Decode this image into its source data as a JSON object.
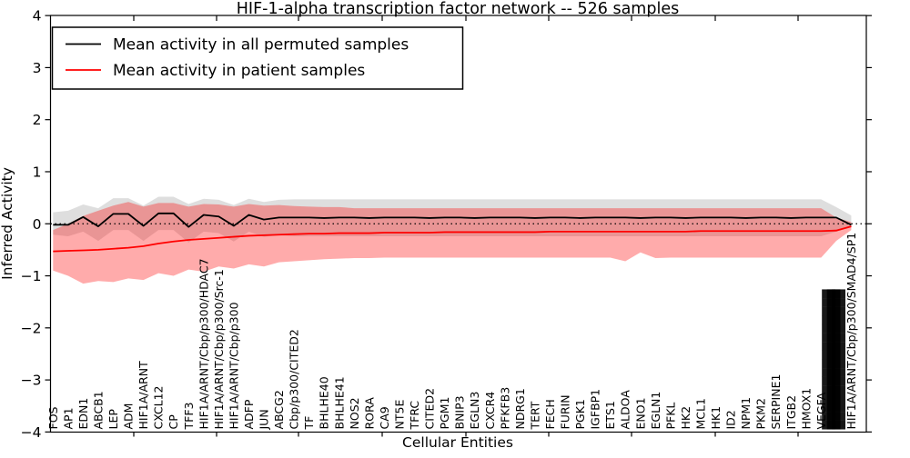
{
  "title": "HIF-1-alpha transcription factor network -- 526 samples",
  "axes": {
    "xlabel": "Cellular Entities",
    "ylabel": "Inferred Activity",
    "ytick_values": [
      4,
      3,
      2,
      1,
      0,
      -1,
      -2,
      -3,
      -4
    ],
    "ytick_labels": [
      "4",
      "3",
      "2",
      "1",
      "0",
      "−1",
      "−2",
      "−3",
      "−4"
    ],
    "ylim": [
      -4,
      4
    ]
  },
  "legend": {
    "entries": [
      {
        "label": "Mean activity in all permuted samples",
        "color": "#000000"
      },
      {
        "label": "Mean activity in patient samples",
        "color": "#ff0000"
      }
    ]
  },
  "colors": {
    "permuted_line": "#000000",
    "patient_line": "#ff0000",
    "permuted_band": "rgba(0,0,0,0.13)",
    "patient_band": "rgba(255,0,0,0.33)",
    "zero_line": "#000000",
    "background": "#ffffff"
  },
  "end_cluster": {
    "overlap_glyphs": "████████████████",
    "legible_label": "HIF1A/ARNT/Cbp/p300/SMAD4/SP1"
  },
  "chart_data": {
    "type": "line",
    "title": "HIF-1-alpha transcription factor network -- 526 samples",
    "xlabel": "Cellular Entities",
    "ylabel": "Inferred Activity",
    "ylim": [
      -4,
      4
    ],
    "grid": false,
    "zero_reference_line": 0,
    "legend_position": "upper left",
    "categories": [
      "FOS",
      "AP1",
      "EDN1",
      "ABCB1",
      "LEP",
      "ADM",
      "HIF1A/ARNT",
      "CXCL12",
      "CP",
      "TFF3",
      "HIF1A/ARNT/Cbp/p300/HDAC7",
      "HIF1A/ARNT/Cbp/p300/Src-1",
      "HIF1A/ARNT/Cbp/p300",
      "ADFP",
      "JUN",
      "ABCG2",
      "Cbp/p300/CITED2",
      "TF",
      "BHLHE40",
      "BHLHE41",
      "NOS2",
      "RORA",
      "CA9",
      "NT5E",
      "TFRC",
      "CITED2",
      "PGM1",
      "BNIP3",
      "EGLN3",
      "CXCR4",
      "PFKFB3",
      "NDRG1",
      "TERT",
      "FECH",
      "FURIN",
      "PGK1",
      "IGFBP1",
      "ETS1",
      "ALDOA",
      "ENO1",
      "EGLN1",
      "PFKL",
      "HK2",
      "MCL1",
      "HK1",
      "ID2",
      "NPM1",
      "PKM2",
      "SERPINE1",
      "ITGB2",
      "HMOX1",
      "VEGFA",
      "(illegible overlapping labels)",
      "HIF1A/ARNT/Cbp/p300/SMAD4/SP1"
    ],
    "series": [
      {
        "name": "Mean activity in all permuted samples",
        "color": "#000000",
        "values": [
          -0.02,
          -0.02,
          0.13,
          -0.05,
          0.19,
          0.19,
          -0.04,
          0.2,
          0.2,
          -0.06,
          0.17,
          0.14,
          -0.04,
          0.17,
          0.08,
          0.12,
          0.12,
          0.12,
          0.11,
          0.12,
          0.12,
          0.11,
          0.12,
          0.12,
          0.12,
          0.11,
          0.12,
          0.12,
          0.11,
          0.12,
          0.12,
          0.12,
          0.11,
          0.12,
          0.12,
          0.11,
          0.12,
          0.12,
          0.12,
          0.11,
          0.12,
          0.12,
          0.11,
          0.12,
          0.12,
          0.12,
          0.11,
          0.12,
          0.12,
          0.11,
          0.12,
          0.12,
          0.12,
          -0.02
        ],
        "band_upper": [
          0.22,
          0.25,
          0.37,
          0.3,
          0.49,
          0.49,
          0.35,
          0.52,
          0.52,
          0.38,
          0.48,
          0.46,
          0.36,
          0.48,
          0.42,
          0.46,
          0.47,
          0.47,
          0.47,
          0.47,
          0.47,
          0.47,
          0.47,
          0.47,
          0.47,
          0.47,
          0.47,
          0.47,
          0.47,
          0.47,
          0.47,
          0.47,
          0.47,
          0.47,
          0.47,
          0.47,
          0.47,
          0.47,
          0.47,
          0.47,
          0.47,
          0.47,
          0.47,
          0.47,
          0.47,
          0.47,
          0.47,
          0.47,
          0.47,
          0.47,
          0.47,
          0.47,
          0.32,
          0.16
        ],
        "band_lower": [
          -0.21,
          -0.24,
          -0.15,
          -0.33,
          -0.12,
          -0.12,
          -0.33,
          -0.12,
          -0.12,
          -0.36,
          -0.15,
          -0.18,
          -0.34,
          -0.15,
          -0.25,
          -0.22,
          -0.24,
          -0.24,
          -0.24,
          -0.24,
          -0.24,
          -0.24,
          -0.24,
          -0.24,
          -0.24,
          -0.24,
          -0.24,
          -0.24,
          -0.24,
          -0.24,
          -0.24,
          -0.24,
          -0.24,
          -0.24,
          -0.24,
          -0.24,
          -0.24,
          -0.24,
          -0.24,
          -0.24,
          -0.24,
          -0.24,
          -0.24,
          -0.24,
          -0.24,
          -0.24,
          -0.24,
          -0.24,
          -0.24,
          -0.24,
          -0.24,
          -0.24,
          -0.15,
          -0.06
        ]
      },
      {
        "name": "Mean activity in patient samples",
        "color": "#ff0000",
        "values": [
          -0.53,
          -0.52,
          -0.51,
          -0.5,
          -0.48,
          -0.46,
          -0.43,
          -0.38,
          -0.34,
          -0.31,
          -0.29,
          -0.27,
          -0.25,
          -0.23,
          -0.22,
          -0.21,
          -0.2,
          -0.19,
          -0.19,
          -0.18,
          -0.18,
          -0.18,
          -0.17,
          -0.17,
          -0.17,
          -0.17,
          -0.16,
          -0.16,
          -0.16,
          -0.16,
          -0.16,
          -0.16,
          -0.16,
          -0.15,
          -0.15,
          -0.15,
          -0.15,
          -0.15,
          -0.15,
          -0.15,
          -0.15,
          -0.15,
          -0.15,
          -0.14,
          -0.14,
          -0.14,
          -0.14,
          -0.14,
          -0.14,
          -0.14,
          -0.14,
          -0.14,
          -0.13,
          -0.05
        ],
        "band_upper": [
          -0.12,
          0.0,
          0.15,
          0.25,
          0.35,
          0.42,
          0.33,
          0.4,
          0.4,
          0.33,
          0.38,
          0.37,
          0.33,
          0.38,
          0.35,
          0.36,
          0.34,
          0.33,
          0.32,
          0.32,
          0.3,
          0.3,
          0.3,
          0.3,
          0.3,
          0.3,
          0.3,
          0.3,
          0.3,
          0.3,
          0.3,
          0.3,
          0.3,
          0.3,
          0.3,
          0.3,
          0.3,
          0.3,
          0.3,
          0.3,
          0.3,
          0.3,
          0.3,
          0.3,
          0.3,
          0.3,
          0.3,
          0.3,
          0.3,
          0.3,
          0.3,
          0.3,
          0.12,
          0.03
        ],
        "band_lower": [
          -0.9,
          -1.0,
          -1.15,
          -1.1,
          -1.12,
          -1.05,
          -1.08,
          -0.95,
          -1.0,
          -0.88,
          -0.92,
          -0.82,
          -0.86,
          -0.78,
          -0.82,
          -0.74,
          -0.72,
          -0.7,
          -0.68,
          -0.67,
          -0.66,
          -0.66,
          -0.65,
          -0.65,
          -0.65,
          -0.65,
          -0.65,
          -0.65,
          -0.65,
          -0.65,
          -0.65,
          -0.65,
          -0.65,
          -0.65,
          -0.65,
          -0.65,
          -0.65,
          -0.65,
          -0.72,
          -0.55,
          -0.66,
          -0.65,
          -0.65,
          -0.65,
          -0.65,
          -0.65,
          -0.65,
          -0.65,
          -0.65,
          -0.65,
          -0.65,
          -0.65,
          -0.33,
          -0.12
        ]
      }
    ]
  }
}
